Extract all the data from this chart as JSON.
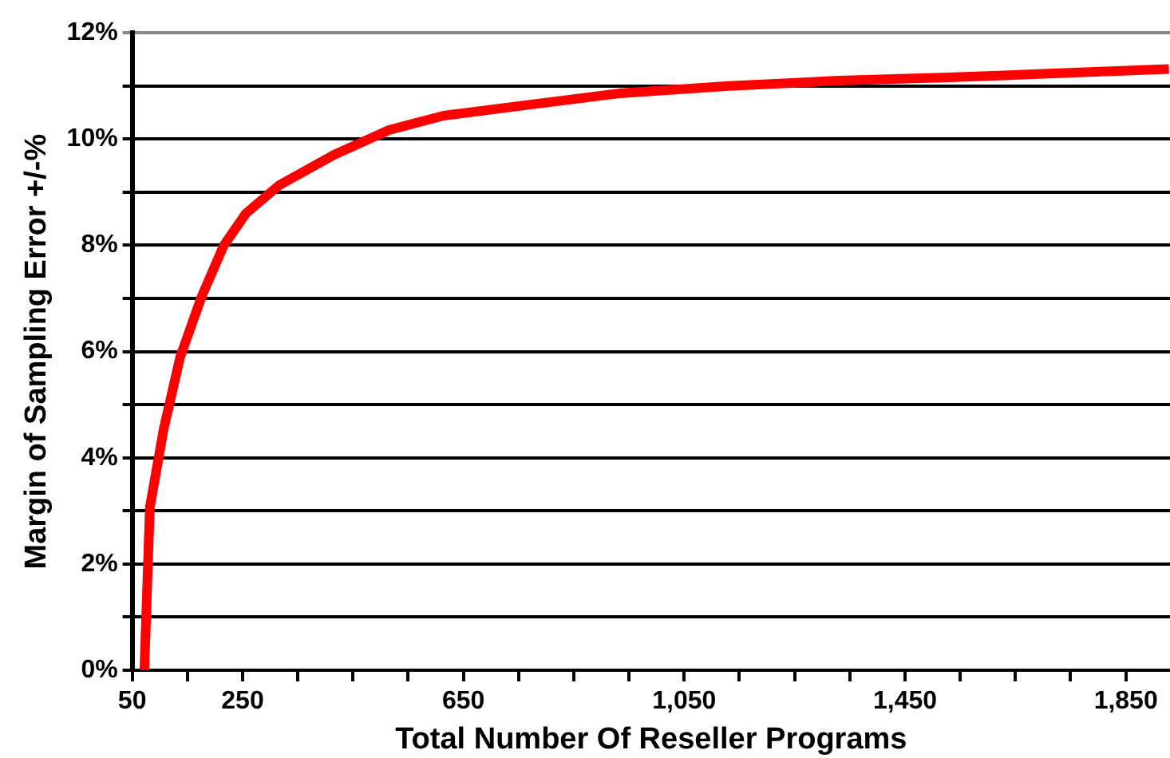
{
  "chart_data": {
    "type": "line",
    "xlabel": "Total Number Of Reseller Programs",
    "ylabel": "Margin of Sampling Error +/-%",
    "x": [
      72,
      82,
      107,
      137,
      176,
      216,
      256,
      316,
      415,
      515,
      614,
      734,
      932,
      1131,
      1330,
      1529,
      1728,
      1928
    ],
    "series": [
      {
        "color": "#ff0000",
        "values": [
          0,
          3.07,
          4.54,
          5.9,
          7.04,
          8.0,
          8.6,
          9.13,
          9.7,
          10.17,
          10.44,
          10.6,
          10.86,
          11.0,
          11.1,
          11.16,
          11.24,
          11.32
        ]
      }
    ],
    "xlim": [
      50,
      1930
    ],
    "xticks": [
      50,
      {
        "value": 150,
        "label": null
      },
      250,
      {
        "value": 350,
        "label": null
      },
      {
        "value": 450,
        "label": null
      },
      {
        "value": 550,
        "label": null
      },
      650,
      {
        "value": 750,
        "label": null
      },
      {
        "value": 850,
        "label": null
      },
      {
        "value": 950,
        "label": null
      },
      {
        "value": 1050,
        "label": "1,050"
      },
      {
        "value": 1150,
        "label": null
      },
      {
        "value": 1250,
        "label": null
      },
      {
        "value": 1350,
        "label": null
      },
      {
        "value": 1450,
        "label": "1,450"
      },
      {
        "value": 1550,
        "label": null
      },
      {
        "value": 1650,
        "label": null
      },
      {
        "value": 1750,
        "label": null
      },
      {
        "value": 1850,
        "label": "1,850"
      }
    ],
    "ylim": [
      0,
      12
    ],
    "yticks": [
      {
        "value": 0,
        "label": "0%"
      },
      {
        "value": 1,
        "label": null
      },
      {
        "value": 2,
        "label": "2%"
      },
      {
        "value": 3,
        "label": null
      },
      {
        "value": 4,
        "label": "4%"
      },
      {
        "value": 5,
        "label": null
      },
      {
        "value": 6,
        "label": "6%"
      },
      {
        "value": 7,
        "label": null
      },
      {
        "value": 8,
        "label": "8%"
      },
      {
        "value": 9,
        "label": null
      },
      {
        "value": 10,
        "label": "10%"
      },
      {
        "value": 11,
        "label": null
      },
      {
        "value": 12,
        "label": "12%"
      }
    ],
    "grid": "y",
    "legend": false,
    "marker": "none",
    "line_style": "solid"
  }
}
